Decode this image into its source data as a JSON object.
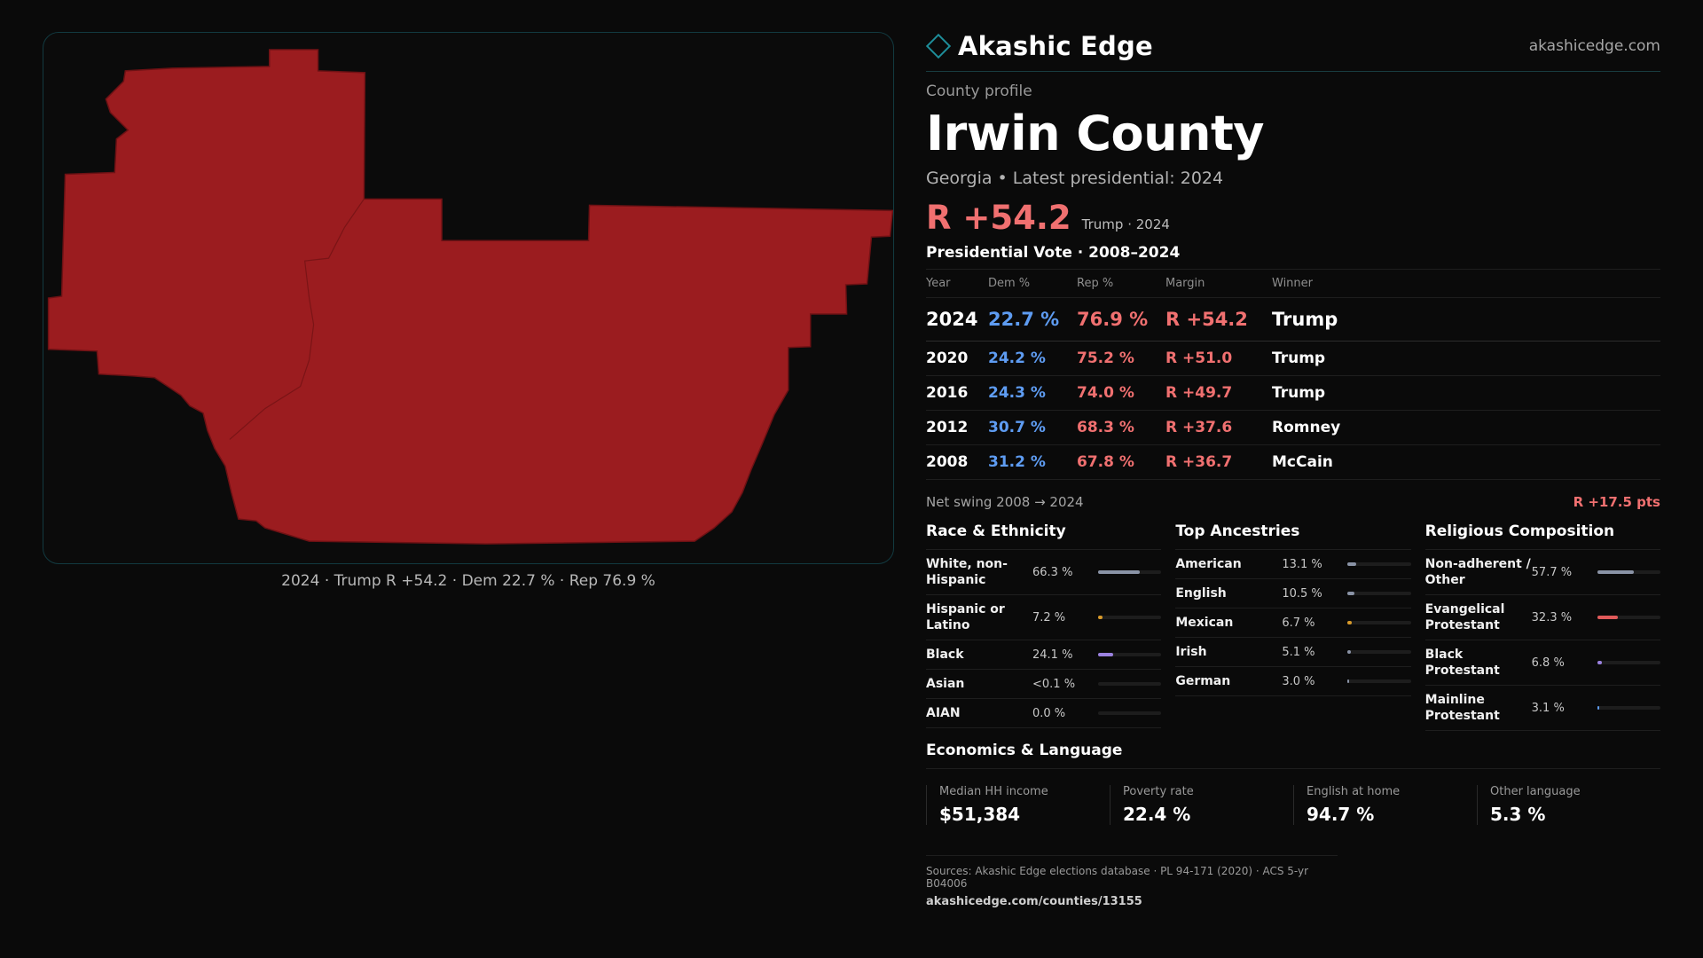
{
  "brand": {
    "name": "Akashic Edge",
    "url": "akashicedge.com",
    "accent": "#1e8e9a"
  },
  "profile": {
    "eyebrow": "County profile",
    "county": "Irwin County",
    "subtitle": "Georgia • Latest presidential: 2024",
    "headline_margin": "R +54.2",
    "headline_note": "Trump · 2024"
  },
  "map": {
    "caption": "2024 · Trump R +54.2 · Dem 22.7 % · Rep 76.9 %",
    "fill_color": "#9b1c1f"
  },
  "votes": {
    "title": "Presidential Vote · 2008–2024",
    "headers": [
      "Year",
      "Dem %",
      "Rep %",
      "Margin",
      "Winner"
    ],
    "rows": [
      {
        "year": "2024",
        "dem": "22.7 %",
        "rep": "76.9 %",
        "margin": "R +54.2",
        "winner": "Trump"
      },
      {
        "year": "2020",
        "dem": "24.2 %",
        "rep": "75.2 %",
        "margin": "R +51.0",
        "winner": "Trump"
      },
      {
        "year": "2016",
        "dem": "24.3 %",
        "rep": "74.0 %",
        "margin": "R +49.7",
        "winner": "Trump"
      },
      {
        "year": "2012",
        "dem": "30.7 %",
        "rep": "68.3 %",
        "margin": "R +37.6",
        "winner": "Romney"
      },
      {
        "year": "2008",
        "dem": "31.2 %",
        "rep": "67.8 %",
        "margin": "R +36.7",
        "winner": "McCain"
      }
    ],
    "dem_color": "#5e9cf2",
    "rep_color": "#f07070"
  },
  "swing": {
    "label": "Net swing 2008 → 2024",
    "value": "R +17.5 pts"
  },
  "race": {
    "title": "Race & Ethnicity",
    "items": [
      {
        "label": "White, non-Hispanic",
        "value": "66.3 %",
        "fraction": 0.663,
        "color": "#8a93a6"
      },
      {
        "label": "Hispanic or Latino",
        "value": "7.2 %",
        "fraction": 0.072,
        "color": "#d89a2a"
      },
      {
        "label": "Black",
        "value": "24.1 %",
        "fraction": 0.241,
        "color": "#9b82e0"
      },
      {
        "label": "Asian",
        "value": "<0.1 %",
        "fraction": 0.0,
        "color": "#7fc8c0"
      },
      {
        "label": "AIAN",
        "value": "0.0 %",
        "fraction": 0.0,
        "color": "#7fc8c0"
      }
    ]
  },
  "ancestries": {
    "title": "Top Ancestries",
    "items": [
      {
        "label": "American",
        "value": "13.1 %",
        "fraction": 0.131,
        "color": "#8a93a6"
      },
      {
        "label": "English",
        "value": "10.5 %",
        "fraction": 0.105,
        "color": "#8a93a6"
      },
      {
        "label": "Mexican",
        "value": "6.7 %",
        "fraction": 0.067,
        "color": "#d89a2a"
      },
      {
        "label": "Irish",
        "value": "5.1 %",
        "fraction": 0.051,
        "color": "#8a93a6"
      },
      {
        "label": "German",
        "value": "3.0 %",
        "fraction": 0.03,
        "color": "#8a93a6"
      }
    ]
  },
  "religion": {
    "title": "Religious Composition",
    "items": [
      {
        "label": "Non-adherent / Other",
        "value": "57.7 %",
        "fraction": 0.577,
        "color": "#8a93a6"
      },
      {
        "label": "Evangelical Protestant",
        "value": "32.3 %",
        "fraction": 0.323,
        "color": "#e05a5a"
      },
      {
        "label": "Black Protestant",
        "value": "6.8 %",
        "fraction": 0.068,
        "color": "#9b82e0"
      },
      {
        "label": "Mainline Protestant",
        "value": "3.1 %",
        "fraction": 0.031,
        "color": "#5e9cf2"
      }
    ]
  },
  "economics": {
    "title": "Economics & Language",
    "cells": [
      {
        "label": "Median HH income",
        "value": "$51,384"
      },
      {
        "label": "Poverty rate",
        "value": "22.4 %"
      },
      {
        "label": "English at home",
        "value": "94.7 %"
      },
      {
        "label": "Other language",
        "value": "5.3 %"
      }
    ]
  },
  "sources": {
    "line": "Sources: Akashic Edge elections database · PL 94-171 (2020) · ACS 5-yr B04006",
    "url": "akashicedge.com/counties/13155"
  }
}
